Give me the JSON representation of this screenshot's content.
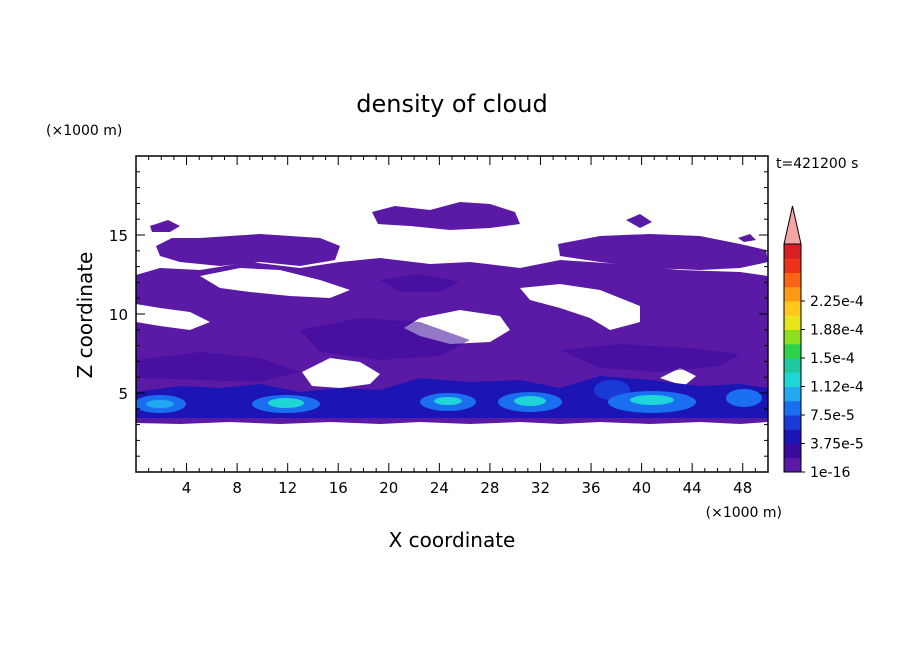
{
  "chart_data": {
    "type": "heatmap",
    "title": "density of cloud",
    "xlabel": "X coordinate",
    "ylabel": "Z coordinate",
    "x_unit": "(×1000 m)",
    "y_unit": "(×1000 m)",
    "time_label": "t=421200 s",
    "xlim": [
      0,
      50
    ],
    "ylim": [
      0,
      20
    ],
    "x_ticks": [
      "4",
      "8",
      "12",
      "16",
      "20",
      "24",
      "28",
      "32",
      "36",
      "40",
      "44",
      "48"
    ],
    "y_ticks": [
      "5",
      "10",
      "15"
    ],
    "legend": {
      "placement": "right",
      "labels": [
        "1e-16",
        "3.75e-5",
        "7.5e-5",
        "1.12e-4",
        "1.5e-4",
        "1.88e-4",
        "2.25e-4"
      ],
      "colors": [
        "#5a1aa6",
        "#3a0a9a",
        "#1c14b4",
        "#1a3ad8",
        "#1a6ef0",
        "#22a8f0",
        "#1ed6d6",
        "#1ec8a0",
        "#2ed24a",
        "#8ce020",
        "#e6e61a",
        "#ffc81a",
        "#ff9a14",
        "#ff6414",
        "#ee3218",
        "#d82020"
      ],
      "extend_color": "#f4a6a6"
    }
  }
}
